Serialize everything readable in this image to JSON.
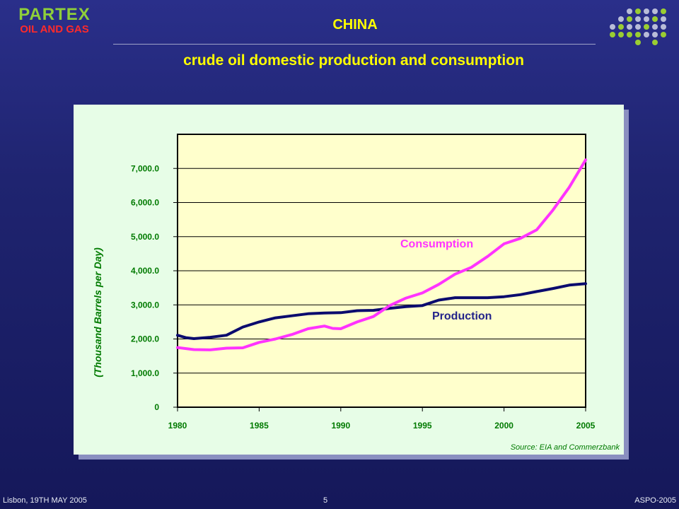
{
  "header": {
    "logo_name": "PARTEX",
    "logo_sub": "OIL AND GAS",
    "title": "CHINA",
    "subtitle": "crude oil domestic production and consumption"
  },
  "colors": {
    "title_yellow": "#ffff00",
    "logo_green": "#8fcf3a",
    "logo_red": "#ff2a2a",
    "production": "#0b0b6e",
    "consumption": "#ff33ff",
    "axis_text": "#007a00",
    "plot_bg": "#ffffcc",
    "panel_bg": "#e7fde7"
  },
  "chart_data": {
    "type": "line",
    "title": "",
    "xlabel": "",
    "ylabel": "(Thousand Barrels per Day)",
    "xlim": [
      1980,
      2005
    ],
    "ylim": [
      0,
      8000
    ],
    "x_ticks": [
      1980,
      1985,
      1990,
      1995,
      2000,
      2005
    ],
    "y_ticks": [
      {
        "value": 0,
        "label": "0"
      },
      {
        "value": 1000,
        "label": "1,000.0"
      },
      {
        "value": 2000,
        "label": "2,000.0"
      },
      {
        "value": 3000,
        "label": "3,000.0"
      },
      {
        "value": 4000,
        "label": "4,000.0"
      },
      {
        "value": 5000,
        "label": "5,000.0"
      },
      {
        "value": 6000,
        "label": "6,000.0"
      },
      {
        "value": 7000,
        "label": "7,000.0"
      }
    ],
    "grid": true,
    "legend": "none",
    "series": [
      {
        "name": "Production",
        "color": "#0b0b6e",
        "x": [
          1980,
          1980.5,
          1981,
          1982,
          1983,
          1984,
          1985,
          1986,
          1987,
          1988,
          1989,
          1990,
          1991,
          1992,
          1993,
          1994,
          1995,
          1996,
          1997,
          1998,
          1999,
          2000,
          2001,
          2002,
          2003,
          2004,
          2005
        ],
        "values": [
          2110,
          2040,
          2010,
          2050,
          2110,
          2350,
          2500,
          2620,
          2680,
          2740,
          2760,
          2770,
          2830,
          2840,
          2900,
          2950,
          2980,
          3140,
          3210,
          3210,
          3210,
          3240,
          3300,
          3390,
          3480,
          3580,
          3620
        ]
      },
      {
        "name": "Consumption",
        "color": "#ff33ff",
        "x": [
          1980,
          1981,
          1982,
          1983,
          1984,
          1985,
          1986,
          1987,
          1988,
          1989,
          1989.5,
          1990,
          1991,
          1992,
          1993,
          1994,
          1995,
          1996,
          1997,
          1998,
          1999,
          2000,
          2001,
          2002,
          2003,
          2004,
          2005
        ],
        "values": [
          1750,
          1690,
          1680,
          1730,
          1740,
          1900,
          2000,
          2130,
          2300,
          2380,
          2310,
          2300,
          2500,
          2660,
          2980,
          3200,
          3350,
          3600,
          3900,
          4100,
          4420,
          4790,
          4950,
          5200,
          5780,
          6450,
          7250
        ]
      }
    ],
    "annotations": [
      "Consumption",
      "Production"
    ],
    "source": "Source: EIA and Commerzbank"
  },
  "footer": {
    "left": "Lisbon, 19TH MAY 2005",
    "page": "5",
    "right": "ASPO-2005"
  }
}
